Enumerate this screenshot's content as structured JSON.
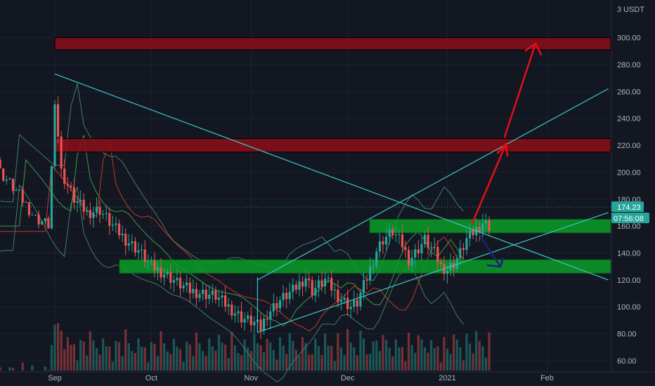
{
  "header": {
    "currency_prefix": "3",
    "currency": "USDT"
  },
  "chart_data": {
    "type": "candlestick",
    "ylim": [
      52,
      318
    ],
    "y_ticks": [
      {
        "label": "300.00",
        "value": 300
      },
      {
        "label": "280.00",
        "value": 280
      },
      {
        "label": "260.00",
        "value": 260
      },
      {
        "label": "240.00",
        "value": 240
      },
      {
        "label": "220.00",
        "value": 220
      },
      {
        "label": "200.00",
        "value": 200
      },
      {
        "label": "180.00",
        "value": 180
      },
      {
        "label": "160.00",
        "value": 160
      },
      {
        "label": "140.00",
        "value": 140
      },
      {
        "label": "120.00",
        "value": 120
      },
      {
        "label": "100.00",
        "value": 100
      },
      {
        "label": "80.00",
        "value": 80
      },
      {
        "label": "60.00",
        "value": 60
      }
    ],
    "x_ticks": [
      {
        "label": "Sep",
        "date": "2020-09-01"
      },
      {
        "label": "Oct",
        "date": "2020-10-01"
      },
      {
        "label": "Nov",
        "date": "2020-11-01"
      },
      {
        "label": "Dec",
        "date": "2020-12-01"
      },
      {
        "label": "2021",
        "date": "2021-01-01"
      },
      {
        "label": "Feb",
        "date": "2021-02-01"
      }
    ],
    "current_price": {
      "label": "174.23",
      "value": 174.23,
      "color": "#26a69a"
    },
    "countdown": {
      "label": "07:56:08",
      "color": "#26a69a"
    },
    "zones": [
      {
        "type": "resistance",
        "from": 291,
        "to": 300,
        "color": "#8b0e18"
      },
      {
        "type": "resistance",
        "from": 215,
        "to": 225,
        "color": "#8b0e18"
      },
      {
        "type": "support",
        "from": 155,
        "to": 165,
        "color": "#0a9e27"
      },
      {
        "type": "support",
        "from": 125,
        "to": 135,
        "color": "#0a9e27"
      }
    ],
    "colors": {
      "up": "#26a69a",
      "down": "#ef5350",
      "trendline": "#3ec7c7",
      "arrow_up": "#e60e16",
      "arrow_down": "#1a237e"
    }
  }
}
